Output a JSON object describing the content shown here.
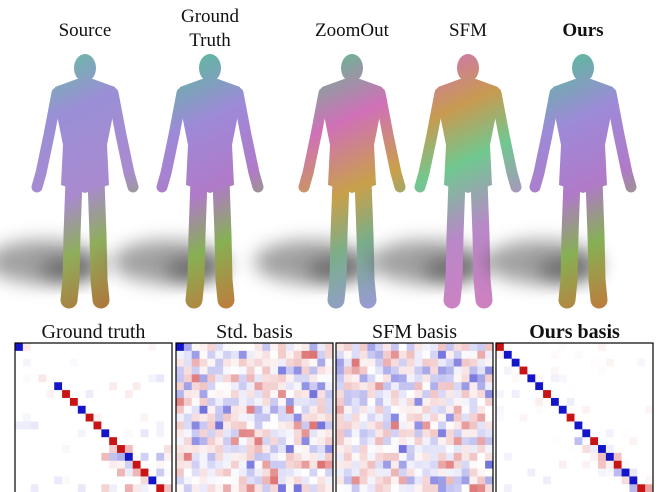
{
  "top_labels": [
    [
      "Source"
    ],
    [
      "Ground",
      "Truth"
    ],
    [
      "ZoomOut"
    ],
    [
      "SFM"
    ],
    [
      "Ours"
    ]
  ],
  "bottom_labels": [
    "Ground truth",
    "Std. basis",
    "SFM basis",
    "Ours basis"
  ]
}
